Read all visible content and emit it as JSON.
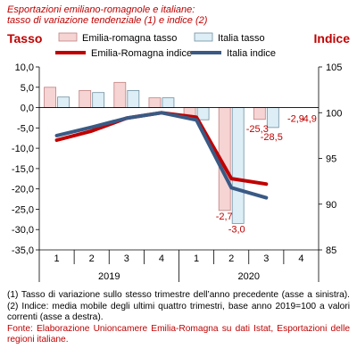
{
  "title_lines": [
    "Esportazioni emiliano-romagnole e italiane:",
    "tasso di variazione tendenziale (1) e indice (2)"
  ],
  "notes": [
    "(1) Tasso di variazione sullo stesso trimestre dell’anno precedente (asse a sinistra). (2) Indice: media mobile degli ultimi quattro trimestri, base anno 2019=100 a valori correnti (asse a destra)."
  ],
  "source": "Fonte: Elaborazione Unioncamere Emilia-Romagna su dati Istat, Esportazioni delle regioni italiane.",
  "chart_data": {
    "type": "bar+line",
    "left_axis": {
      "title": "Tasso",
      "range": [
        -35,
        10
      ],
      "ticks": [
        "10,0",
        "5,0",
        "0,0",
        "-5,0",
        "-10,0",
        "-15,0",
        "-20,0",
        "-25,0",
        "-30,0",
        "-35,0"
      ]
    },
    "right_axis": {
      "title": "Indice",
      "range": [
        85,
        105
      ],
      "ticks": [
        "105",
        "100",
        "95",
        "90",
        "85"
      ]
    },
    "categories": [
      "1",
      "2",
      "3",
      "4",
      "1",
      "2",
      "3",
      "4"
    ],
    "year_labels": [
      {
        "label": "2019",
        "from": 0,
        "to": 3
      },
      {
        "label": "2020",
        "from": 4,
        "to": 7
      }
    ],
    "bars": [
      {
        "name": "Emilia-romagna tasso",
        "color": "#f6d4d4",
        "stroke": "#c08080",
        "values": [
          5.0,
          4.2,
          6.2,
          2.4,
          -2.7,
          -25.3,
          -2.9,
          null
        ]
      },
      {
        "name": "Italia tasso",
        "color": "#ddeef6",
        "stroke": "#6f8fa0",
        "values": [
          2.6,
          3.7,
          4.2,
          2.4,
          -3.0,
          -28.5,
          -4.9,
          null
        ]
      }
    ],
    "lines": [
      {
        "name": "Emilia-Romagna indice",
        "color": "#c00000",
        "values": [
          97.0,
          98.0,
          99.4,
          100.0,
          99.5,
          92.8,
          92.2,
          null
        ]
      },
      {
        "name": "Italia indice",
        "color": "#3a5a85",
        "values": [
          97.5,
          98.4,
          99.4,
          100.0,
          99.2,
          91.8,
          90.7,
          null
        ]
      }
    ],
    "data_labels": [
      {
        "text": "-2,7",
        "color": "#c00000",
        "ref": 5.4
      },
      {
        "text": "-3,0",
        "color": "#c00000",
        "ref": 5.8
      },
      {
        "text": "-25,3",
        "color": "#c00000",
        "ref": 6.4
      },
      {
        "text": "-28,5",
        "color": "#c00000",
        "ref": 6.8
      },
      {
        "text": "-2,9",
        "color": "#c00000",
        "ref": 7.4
      },
      {
        "text": "-4,9",
        "color": "#c00000",
        "ref": 7.8
      }
    ]
  }
}
